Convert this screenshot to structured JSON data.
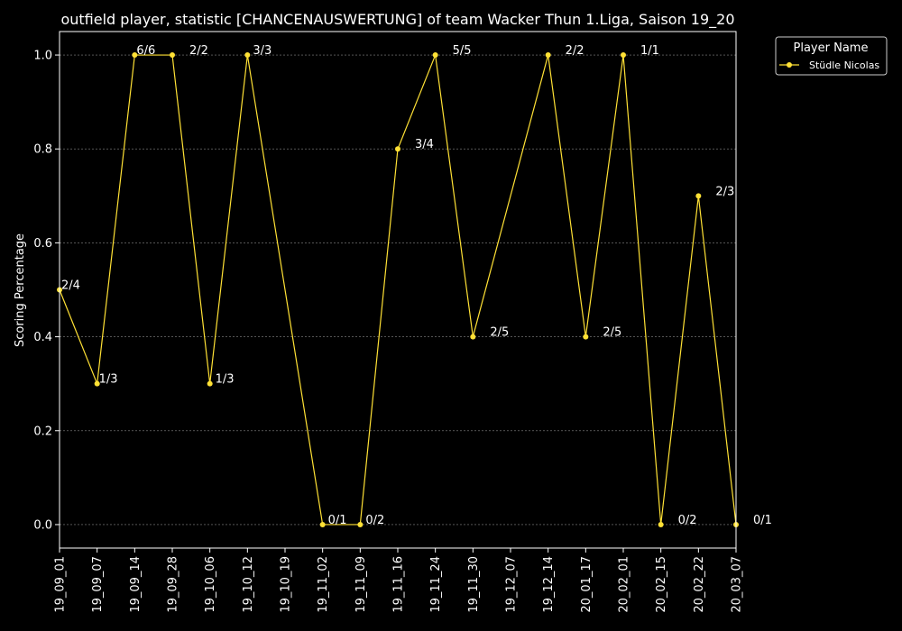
{
  "chart_data": {
    "type": "line",
    "title": "outfield player, statistic [CHANCENAUSWERTUNG] of team Wacker Thun 1.Liga, Saison 19_20",
    "ylabel": "Scoring Percentage",
    "xlabel": "",
    "ylim": [
      -0.05,
      1.05
    ],
    "yticks": [
      0.0,
      0.2,
      0.4,
      0.6,
      0.8,
      1.0
    ],
    "ytick_labels": [
      "0.0",
      "0.2",
      "0.4",
      "0.6",
      "0.8",
      "1.0"
    ],
    "categories": [
      "19_09_01",
      "19_09_07",
      "19_09_14",
      "19_09_28",
      "19_10_06",
      "19_10_12",
      "19_10_19",
      "19_11_02",
      "19_11_09",
      "19_11_16",
      "19_11_24",
      "19_11_30",
      "19_12_07",
      "19_12_14",
      "20_01_17",
      "20_02_01",
      "20_02_15",
      "20_02_22",
      "20_03_07"
    ],
    "grid": true,
    "legend": {
      "title": "Player Name",
      "position": "outside-top-right"
    },
    "series": [
      {
        "name": "Stüdle Nicolas",
        "color": "#ffe135",
        "points": [
          {
            "x": "19_09_01",
            "y": 0.5,
            "label": "2/4"
          },
          {
            "x": "19_09_07",
            "y": 0.3,
            "label": "1/3"
          },
          {
            "x": "19_09_14",
            "y": 1.0,
            "label": "6/6"
          },
          {
            "x": "19_09_28",
            "y": 1.0,
            "label": "2/2"
          },
          {
            "x": "19_10_06",
            "y": 0.3,
            "label": "1/3"
          },
          {
            "x": "19_10_12",
            "y": 1.0,
            "label": "3/3"
          },
          {
            "x": "19_11_02",
            "y": 0.0,
            "label": "0/1"
          },
          {
            "x": "19_11_09",
            "y": 0.0,
            "label": "0/2"
          },
          {
            "x": "19_11_16",
            "y": 0.8,
            "label": "3/4"
          },
          {
            "x": "19_11_24",
            "y": 1.0,
            "label": "5/5"
          },
          {
            "x": "19_11_30",
            "y": 0.4,
            "label": "2/5"
          },
          {
            "x": "19_12_14",
            "y": 1.0,
            "label": "2/2"
          },
          {
            "x": "20_01_17",
            "y": 0.4,
            "label": "2/5"
          },
          {
            "x": "20_02_01",
            "y": 1.0,
            "label": "1/1"
          },
          {
            "x": "20_02_15",
            "y": 0.0,
            "label": "0/2"
          },
          {
            "x": "20_02_22",
            "y": 0.7,
            "label": "2/3"
          },
          {
            "x": "20_03_07",
            "y": 0.0,
            "label": "0/1"
          }
        ]
      }
    ]
  }
}
